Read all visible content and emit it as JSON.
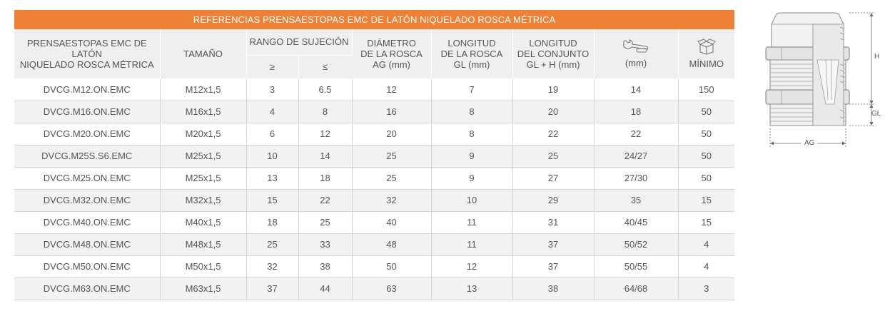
{
  "table": {
    "title": "REFERENCIAS PRENSAESTOPAS EMC DE LATÓN NIQUELADO ROSCA MÉTRICA",
    "headers": {
      "ref_line1": "PRENSAESTOPAS EMC DE LATÓN",
      "ref_line2": "NIQUELADO ROSCA MÉTRICA",
      "size": "TAMAÑO",
      "range": "RANGO DE SUJECIÓN",
      "range_min": "≥",
      "range_max": "≤",
      "diam_line1": "DIÁMETRO",
      "diam_line2": "DE LA ROSCA",
      "diam_line3": "AG (mm)",
      "len_line1": "LONGITUD",
      "len_line2": "DE LA ROSCA",
      "len_line3": "GL (mm)",
      "total_line1": "LONGITUD",
      "total_line2": "DEL CONJUNTO",
      "total_line3": "GL + H (mm)",
      "wrench_icon": "wrench-icon",
      "wrench_unit": "(mm)",
      "box_icon": "box-icon",
      "min_label": "MÍNIMO"
    },
    "rows": [
      {
        "ref": "DVCG.M12.ON.EMC",
        "size": "M12x1,5",
        "min": "3",
        "max": "6.5",
        "ag": "12",
        "gl": "7",
        "total": "19",
        "wrench": "14",
        "qty": "150"
      },
      {
        "ref": "DVCG.M16.ON.EMC",
        "size": "M16x1,5",
        "min": "4",
        "max": "8",
        "ag": "16",
        "gl": "8",
        "total": "20",
        "wrench": "18",
        "qty": "50"
      },
      {
        "ref": "DVCG.M20.ON.EMC",
        "size": "M20x1,5",
        "min": "6",
        "max": "12",
        "ag": "20",
        "gl": "8",
        "total": "22",
        "wrench": "22",
        "qty": "50"
      },
      {
        "ref": "DVCG.M25S.S6.EMC",
        "size": "M25x1,5",
        "min": "10",
        "max": "14",
        "ag": "25",
        "gl": "9",
        "total": "25",
        "wrench": "24/27",
        "qty": "50"
      },
      {
        "ref": "DVCG.M25.ON.EMC",
        "size": "M25x1,5",
        "min": "13",
        "max": "18",
        "ag": "25",
        "gl": "9",
        "total": "27",
        "wrench": "27/30",
        "qty": "50"
      },
      {
        "ref": "DVCG.M32.ON.EMC",
        "size": "M32x1,5",
        "min": "15",
        "max": "22",
        "ag": "32",
        "gl": "10",
        "total": "29",
        "wrench": "35",
        "qty": "15"
      },
      {
        "ref": "DVCG.M40.ON.EMC",
        "size": "M40x1,5",
        "min": "18",
        "max": "25",
        "ag": "40",
        "gl": "11",
        "total": "31",
        "wrench": "40/45",
        "qty": "15"
      },
      {
        "ref": "DVCG.M48.ON.EMC",
        "size": "M48x1,5",
        "min": "25",
        "max": "33",
        "ag": "48",
        "gl": "11",
        "total": "37",
        "wrench": "50/52",
        "qty": "4"
      },
      {
        "ref": "DVCG.M50.ON.EMC",
        "size": "M50x1,5",
        "min": "32",
        "max": "38",
        "ag": "50",
        "gl": "12",
        "total": "37",
        "wrench": "50/55",
        "qty": "4"
      },
      {
        "ref": "DVCG.M63.ON.EMC",
        "size": "M63x1,5",
        "min": "37",
        "max": "44",
        "ag": "63",
        "gl": "13",
        "total": "38",
        "wrench": "64/68",
        "qty": "3"
      }
    ]
  },
  "diagram": {
    "label_h": "H",
    "label_gl": "GL",
    "label_ag": "AG"
  },
  "colors": {
    "accent": "#ee8136",
    "header_bg": "#efefef",
    "row_shade": "#f2f2f2",
    "rule": "#d4d4d4"
  }
}
